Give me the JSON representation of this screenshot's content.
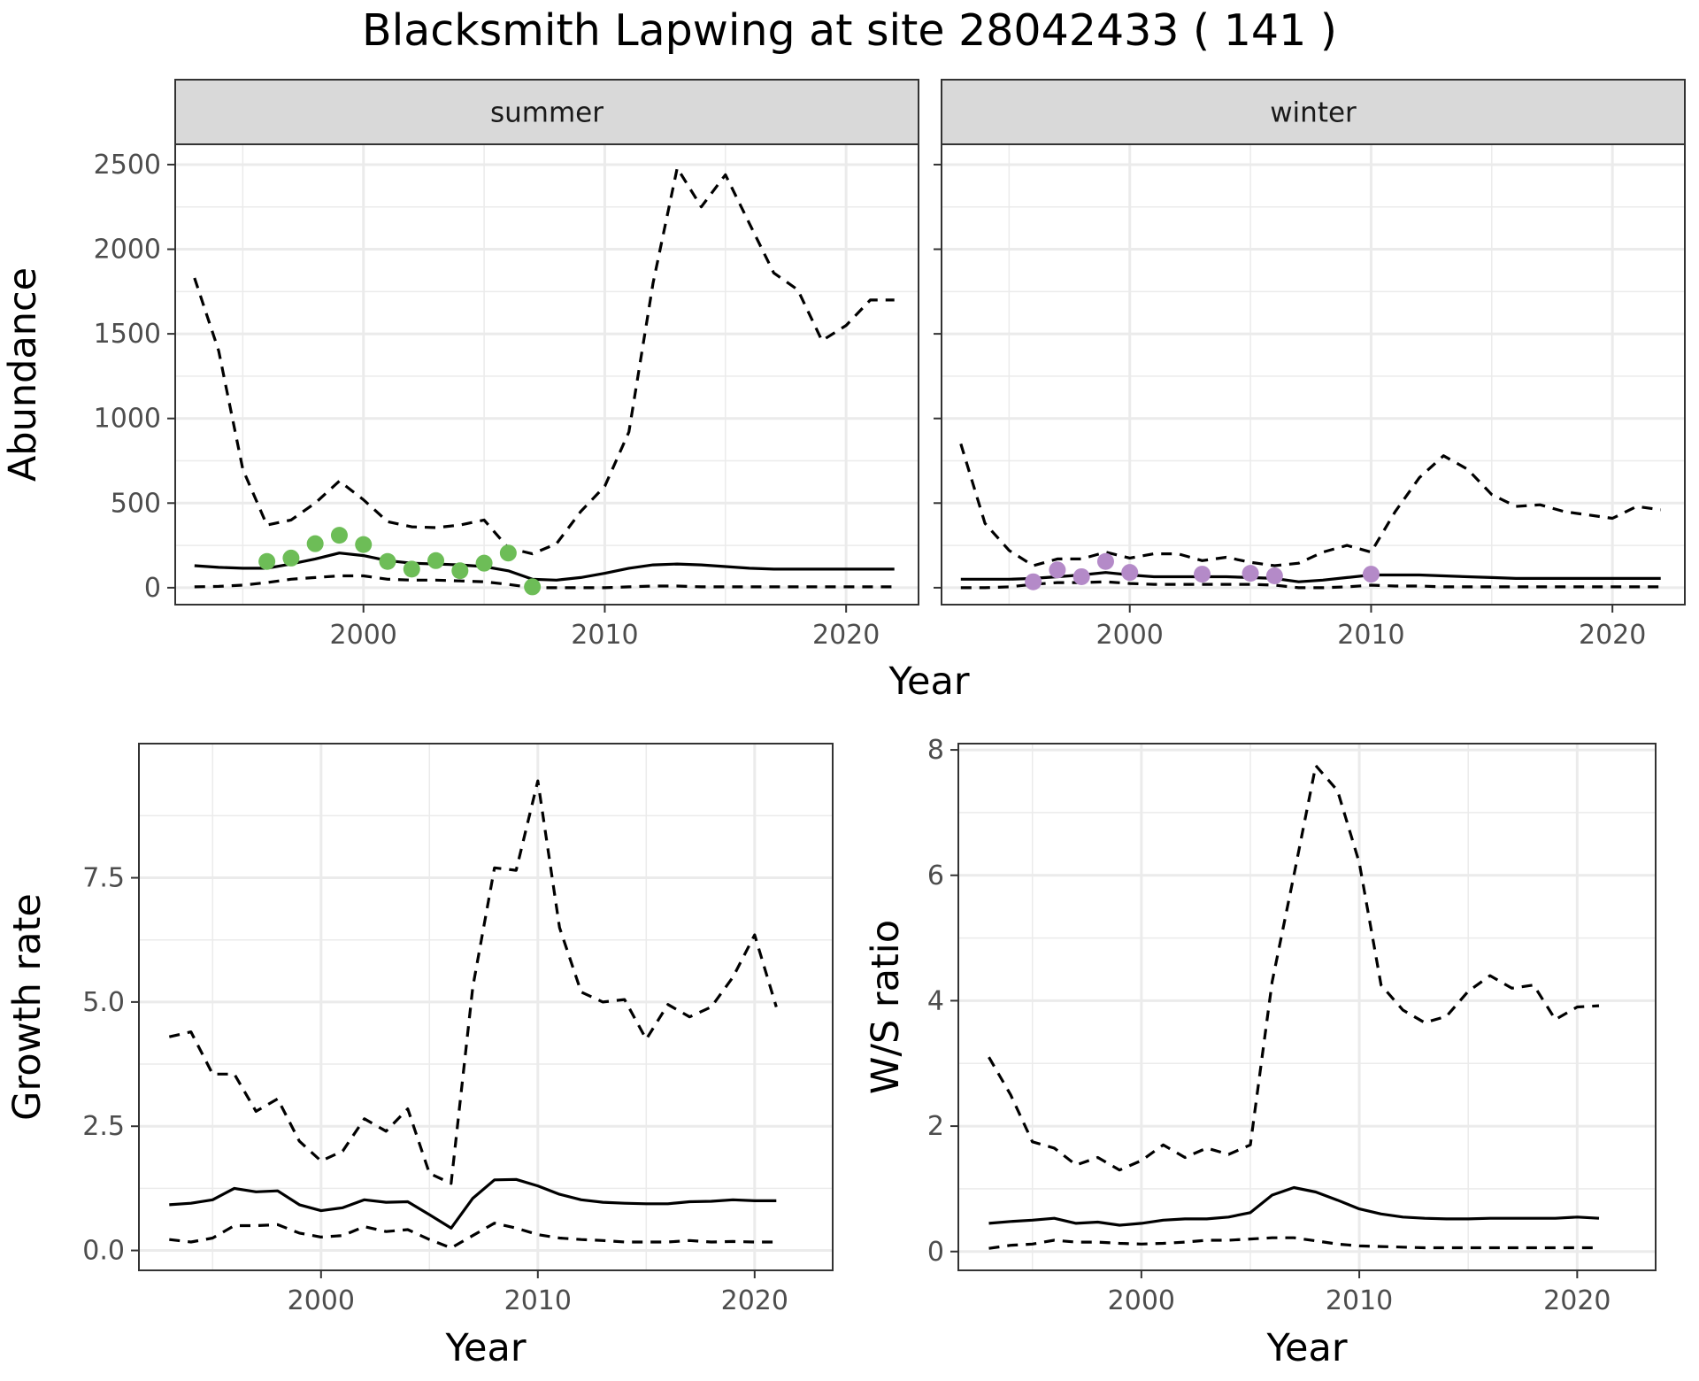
{
  "title": "Blacksmith Lapwing at site 28042433 ( 141 )",
  "colors": {
    "summer_points": "#6dbd57",
    "winter_points": "#b48ac8",
    "line": "#000000",
    "grid": "#ebebeb",
    "strip": "#d9d9d9"
  },
  "chart_data": [
    {
      "type": "line",
      "facet": "summer",
      "xlabel": "Year",
      "ylabel": "Abundance",
      "xlim": [
        1992.2,
        2023
      ],
      "ylim": [
        -100,
        2620
      ],
      "xticks": [
        2000,
        2010,
        2020
      ],
      "yticks": [
        0,
        500,
        1000,
        1500,
        2000,
        2500
      ],
      "yticklabels": [
        "0",
        "500",
        "1000",
        "1500",
        "2000",
        "2500"
      ],
      "x": [
        1993,
        1994,
        1995,
        1996,
        1997,
        1998,
        1999,
        2000,
        2001,
        2002,
        2003,
        2004,
        2005,
        2006,
        2007,
        2008,
        2009,
        2010,
        2011,
        2012,
        2013,
        2014,
        2015,
        2016,
        2017,
        2018,
        2019,
        2020,
        2021,
        2022
      ],
      "series": [
        {
          "role": "estimate",
          "style": "solid",
          "values": [
            130,
            120,
            115,
            115,
            140,
            170,
            205,
            190,
            160,
            145,
            140,
            135,
            125,
            100,
            50,
            45,
            60,
            85,
            115,
            135,
            140,
            135,
            125,
            115,
            110,
            110,
            110,
            110,
            110,
            110
          ]
        },
        {
          "role": "upper",
          "style": "dashed",
          "values": [
            1830,
            1400,
            700,
            370,
            400,
            500,
            630,
            520,
            390,
            360,
            355,
            370,
            400,
            235,
            200,
            260,
            450,
            600,
            920,
            1800,
            2480,
            2250,
            2440,
            2150,
            1860,
            1760,
            1460,
            1550,
            1700,
            1700
          ]
        },
        {
          "role": "lower",
          "style": "dashed",
          "values": [
            5,
            8,
            15,
            30,
            50,
            60,
            70,
            70,
            50,
            45,
            45,
            40,
            35,
            20,
            0,
            0,
            0,
            0,
            5,
            10,
            10,
            5,
            5,
            5,
            5,
            5,
            5,
            5,
            5,
            5
          ]
        }
      ],
      "points": {
        "x": [
          1996,
          1997,
          1998,
          1999,
          2000,
          2001,
          2002,
          2003,
          2004,
          2005,
          2006,
          2007
        ],
        "y": [
          155,
          175,
          260,
          310,
          255,
          155,
          110,
          160,
          100,
          145,
          205,
          5
        ]
      },
      "grid": true
    },
    {
      "type": "line",
      "facet": "winter",
      "xlabel": "Year",
      "ylabel": "Abundance",
      "xlim": [
        1992.2,
        2023
      ],
      "ylim": [
        -100,
        2620
      ],
      "xticks": [
        2000,
        2010,
        2020
      ],
      "yticks": [
        0,
        500,
        1000,
        1500,
        2000,
        2500
      ],
      "x": [
        1993,
        1994,
        1995,
        1996,
        1997,
        1998,
        1999,
        2000,
        2001,
        2002,
        2003,
        2004,
        2005,
        2006,
        2007,
        2008,
        2009,
        2010,
        2011,
        2012,
        2013,
        2014,
        2015,
        2016,
        2017,
        2018,
        2019,
        2020,
        2021,
        2022
      ],
      "series": [
        {
          "role": "estimate",
          "style": "solid",
          "values": [
            50,
            50,
            50,
            55,
            65,
            75,
            90,
            75,
            65,
            65,
            65,
            65,
            60,
            55,
            35,
            45,
            60,
            75,
            75,
            75,
            70,
            65,
            60,
            55,
            55,
            55,
            55,
            55,
            55,
            55
          ]
        },
        {
          "role": "upper",
          "style": "dashed",
          "values": [
            850,
            380,
            220,
            130,
            170,
            170,
            210,
            175,
            200,
            200,
            160,
            180,
            150,
            130,
            145,
            210,
            250,
            210,
            450,
            650,
            780,
            700,
            550,
            480,
            490,
            450,
            430,
            410,
            480,
            460
          ]
        },
        {
          "role": "lower",
          "style": "dashed",
          "values": [
            0,
            0,
            5,
            20,
            30,
            30,
            35,
            25,
            20,
            20,
            20,
            20,
            20,
            15,
            0,
            0,
            5,
            15,
            10,
            10,
            5,
            5,
            5,
            5,
            5,
            5,
            5,
            5,
            5,
            5
          ]
        }
      ],
      "points": {
        "x": [
          1996,
          1997,
          1998,
          1999,
          2000,
          2003,
          2005,
          2006,
          2010
        ],
        "y": [
          35,
          105,
          65,
          155,
          90,
          80,
          85,
          70,
          80
        ]
      },
      "grid": true
    },
    {
      "type": "line",
      "xlabel": "Year",
      "ylabel": "Growth rate",
      "xlim": [
        1991.6,
        2023.6
      ],
      "ylim": [
        -0.4,
        10.2
      ],
      "xticks": [
        2000,
        2010,
        2020
      ],
      "yticks": [
        0,
        2.5,
        5,
        7.5
      ],
      "yticklabels": [
        "0.0",
        "2.5",
        "5.0",
        "7.5"
      ],
      "x": [
        1993,
        1994,
        1995,
        1996,
        1997,
        1998,
        1999,
        2000,
        2001,
        2002,
        2003,
        2004,
        2005,
        2006,
        2007,
        2008,
        2009,
        2010,
        2011,
        2012,
        2013,
        2014,
        2015,
        2016,
        2017,
        2018,
        2019,
        2020,
        2021
      ],
      "series": [
        {
          "role": "estimate",
          "style": "solid",
          "values": [
            0.92,
            0.95,
            1.02,
            1.25,
            1.18,
            1.2,
            0.92,
            0.8,
            0.86,
            1.02,
            0.97,
            0.98,
            0.72,
            0.45,
            1.05,
            1.42,
            1.43,
            1.3,
            1.13,
            1.02,
            0.97,
            0.95,
            0.94,
            0.94,
            0.98,
            0.99,
            1.02,
            1.0,
            1.0
          ]
        },
        {
          "role": "upper",
          "style": "dashed",
          "values": [
            4.3,
            4.4,
            3.55,
            3.55,
            2.8,
            3.05,
            2.2,
            1.8,
            2.0,
            2.65,
            2.4,
            2.85,
            1.55,
            1.35,
            5.3,
            7.7,
            7.65,
            9.45,
            6.5,
            5.2,
            5.0,
            5.05,
            4.25,
            4.95,
            4.7,
            4.9,
            5.5,
            6.35,
            4.9
          ]
        },
        {
          "role": "lower",
          "style": "dashed",
          "values": [
            0.22,
            0.17,
            0.25,
            0.5,
            0.5,
            0.52,
            0.35,
            0.27,
            0.3,
            0.48,
            0.38,
            0.42,
            0.22,
            0.05,
            0.3,
            0.55,
            0.45,
            0.32,
            0.25,
            0.22,
            0.2,
            0.17,
            0.17,
            0.17,
            0.2,
            0.17,
            0.18,
            0.17,
            0.17
          ]
        }
      ],
      "grid": true
    },
    {
      "type": "line",
      "xlabel": "Year",
      "ylabel": "W/S ratio",
      "xlim": [
        1991.6,
        2023.6
      ],
      "ylim": [
        -0.3,
        8.1
      ],
      "xticks": [
        2000,
        2010,
        2020
      ],
      "yticks": [
        0,
        2,
        4,
        6,
        8
      ],
      "yticklabels": [
        "0",
        "2",
        "4",
        "6",
        "8"
      ],
      "x": [
        1993,
        1994,
        1995,
        1996,
        1997,
        1998,
        1999,
        2000,
        2001,
        2002,
        2003,
        2004,
        2005,
        2006,
        2007,
        2008,
        2009,
        2010,
        2011,
        2012,
        2013,
        2014,
        2015,
        2016,
        2017,
        2018,
        2019,
        2020,
        2021
      ],
      "series": [
        {
          "role": "estimate",
          "style": "solid",
          "values": [
            0.45,
            0.48,
            0.5,
            0.53,
            0.45,
            0.47,
            0.42,
            0.45,
            0.5,
            0.52,
            0.52,
            0.55,
            0.62,
            0.9,
            1.02,
            0.95,
            0.82,
            0.68,
            0.6,
            0.55,
            0.53,
            0.52,
            0.52,
            0.53,
            0.53,
            0.53,
            0.53,
            0.55,
            0.53
          ]
        },
        {
          "role": "upper",
          "style": "dashed",
          "values": [
            3.1,
            2.5,
            1.75,
            1.65,
            1.38,
            1.5,
            1.3,
            1.45,
            1.7,
            1.5,
            1.65,
            1.55,
            1.7,
            4.3,
            6.0,
            7.75,
            7.35,
            6.2,
            4.25,
            3.85,
            3.65,
            3.75,
            4.15,
            4.4,
            4.2,
            4.25,
            3.7,
            3.9,
            3.92
          ]
        },
        {
          "role": "lower",
          "style": "dashed",
          "values": [
            0.05,
            0.1,
            0.12,
            0.18,
            0.15,
            0.15,
            0.13,
            0.12,
            0.13,
            0.15,
            0.18,
            0.18,
            0.2,
            0.22,
            0.22,
            0.17,
            0.12,
            0.09,
            0.08,
            0.07,
            0.06,
            0.06,
            0.06,
            0.06,
            0.06,
            0.06,
            0.06,
            0.06,
            0.06
          ]
        }
      ],
      "grid": true
    }
  ]
}
